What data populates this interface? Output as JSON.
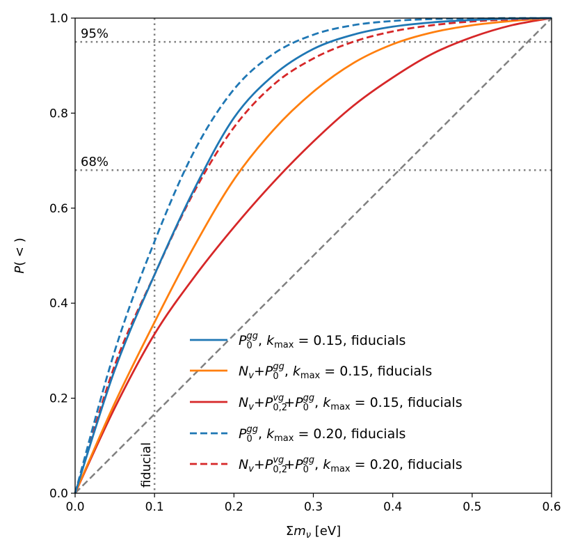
{
  "chart_data": {
    "type": "line",
    "title": "",
    "xlabel": "Σm_ν [eV]",
    "ylabel": "P(<)",
    "xlim": [
      0.0,
      0.6
    ],
    "ylim": [
      0.0,
      1.0
    ],
    "x_ticks": [
      "0.0",
      "0.1",
      "0.2",
      "0.3",
      "0.4",
      "0.5",
      "0.6"
    ],
    "y_ticks": [
      "0.0",
      "0.2",
      "0.4",
      "0.6",
      "0.8",
      "1.0"
    ],
    "grid": false,
    "legend_position": "lower-right",
    "reference_lines": {
      "h95": {
        "y": 0.95,
        "label": "95%"
      },
      "h68": {
        "y": 0.68,
        "label": "68%"
      },
      "vfid": {
        "x": 0.1,
        "label": "fiducial"
      },
      "diagonal": {
        "from": [
          0.0,
          0.0
        ],
        "to": [
          0.6,
          1.0
        ]
      }
    },
    "series": [
      {
        "name": "P0gg, kmax = 0.15, fiducials",
        "legend": {
          "main": "P",
          "sub": "0",
          "sup": "gg",
          "rest": ", k",
          "ksub": "max",
          "tail": " = 0.15, fiducials"
        },
        "color": "#1f77b4",
        "style": "solid",
        "x": [
          0,
          0.05,
          0.1,
          0.15,
          0.2,
          0.25,
          0.3,
          0.35,
          0.4,
          0.45,
          0.5,
          0.55,
          0.6
        ],
        "y": [
          0,
          0.26,
          0.46,
          0.64,
          0.79,
          0.88,
          0.935,
          0.965,
          0.982,
          0.991,
          0.996,
          0.999,
          1.0
        ]
      },
      {
        "name": "Nv+P0gg, kmax = 0.15, fiducials",
        "legend": {
          "pre": "N",
          "presub": "v",
          "main": "+P",
          "sub": "0",
          "sup": "gg",
          "rest": ", k",
          "ksub": "max",
          "tail": " = 0.15, fiducials"
        },
        "color": "#ff7f0e",
        "style": "solid",
        "x": [
          0,
          0.05,
          0.1,
          0.15,
          0.2,
          0.25,
          0.3,
          0.35,
          0.4,
          0.45,
          0.5,
          0.55,
          0.6
        ],
        "y": [
          0,
          0.19,
          0.36,
          0.52,
          0.66,
          0.765,
          0.845,
          0.905,
          0.945,
          0.97,
          0.985,
          0.994,
          1.0
        ]
      },
      {
        "name": "Nv+P0,2vg+P0gg, kmax = 0.15, fiducials",
        "legend": {
          "pre": "N",
          "presub": "v",
          "main": "+P",
          "sub": "0,2",
          "sup": "vg",
          "mid": "+P",
          "sub2": "0",
          "sup2": "gg",
          "rest": ", k",
          "ksub": "max",
          "tail": " = 0.15, fiducials"
        },
        "color": "#d62728",
        "style": "solid",
        "x": [
          0,
          0.05,
          0.1,
          0.15,
          0.2,
          0.25,
          0.3,
          0.35,
          0.4,
          0.45,
          0.5,
          0.55,
          0.6
        ],
        "y": [
          0,
          0.18,
          0.335,
          0.455,
          0.56,
          0.655,
          0.74,
          0.815,
          0.875,
          0.925,
          0.96,
          0.985,
          1.0
        ]
      },
      {
        "name": "P0gg, kmax = 0.20, fiducials",
        "legend": {
          "main": "P",
          "sub": "0",
          "sup": "gg",
          "rest": ", k",
          "ksub": "max",
          "tail": " = 0.20, fiducials"
        },
        "color": "#1f77b4",
        "style": "dashed",
        "x": [
          0,
          0.05,
          0.1,
          0.15,
          0.2,
          0.25,
          0.3,
          0.35,
          0.4,
          0.45,
          0.5,
          0.55,
          0.6
        ],
        "y": [
          0,
          0.3,
          0.53,
          0.72,
          0.85,
          0.925,
          0.965,
          0.985,
          0.994,
          0.998,
          0.999,
          1.0,
          1.0
        ]
      },
      {
        "name": "Nv+P0,2vg+P0gg, kmax = 0.20, fiducials",
        "legend": {
          "pre": "N",
          "presub": "v",
          "main": "+P",
          "sub": "0,2",
          "sup": "vg",
          "mid": "+P",
          "sub2": "0",
          "sup2": "gg",
          "rest": ", k",
          "ksub": "max",
          "tail": " = 0.20, fiducials"
        },
        "color": "#d62728",
        "style": "dashed",
        "x": [
          0,
          0.05,
          0.1,
          0.15,
          0.2,
          0.25,
          0.3,
          0.35,
          0.4,
          0.45,
          0.5,
          0.55,
          0.6
        ],
        "y": [
          0,
          0.27,
          0.46,
          0.635,
          0.77,
          0.86,
          0.915,
          0.95,
          0.972,
          0.985,
          0.993,
          0.997,
          1.0
        ]
      }
    ]
  }
}
